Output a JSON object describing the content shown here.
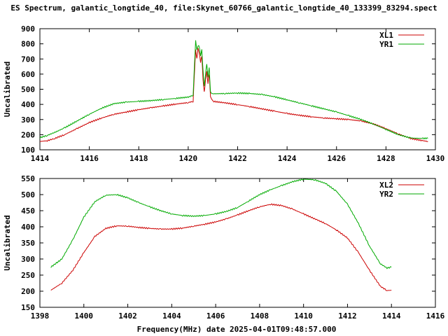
{
  "title": "ES Spectrum, galantic_longtide_40, file:Skynet_60766_galantic_longtide_40_133399_83294.spect",
  "xlabel": "Frequency(MHz) date 2025-04-01T09:48:57.000",
  "chart_data": [
    {
      "type": "line",
      "ylabel": "Uncalibrated",
      "xlim": [
        1414,
        1430
      ],
      "ylim": [
        100,
        900
      ],
      "xticks": [
        1414,
        1416,
        1418,
        1420,
        1422,
        1424,
        1426,
        1428,
        1430
      ],
      "yticks": [
        100,
        200,
        300,
        400,
        500,
        600,
        700,
        800,
        900
      ],
      "grid": false,
      "legend": "top-right",
      "series": [
        {
          "name": "XL1",
          "color": "#cc0000",
          "points": [
            [
              1414.0,
              155
            ],
            [
              1414.3,
              160
            ],
            [
              1414.6,
              175
            ],
            [
              1415.0,
              200
            ],
            [
              1415.5,
              240
            ],
            [
              1416.0,
              280
            ],
            [
              1416.5,
              310
            ],
            [
              1417.0,
              335
            ],
            [
              1417.5,
              350
            ],
            [
              1418.0,
              365
            ],
            [
              1418.5,
              378
            ],
            [
              1419.0,
              390
            ],
            [
              1419.5,
              402
            ],
            [
              1420.0,
              412
            ],
            [
              1420.2,
              420
            ],
            [
              1420.25,
              600
            ],
            [
              1420.3,
              760
            ],
            [
              1420.35,
              700
            ],
            [
              1420.4,
              770
            ],
            [
              1420.45,
              740
            ],
            [
              1420.5,
              680
            ],
            [
              1420.55,
              720
            ],
            [
              1420.6,
              560
            ],
            [
              1420.65,
              480
            ],
            [
              1420.7,
              560
            ],
            [
              1420.75,
              620
            ],
            [
              1420.8,
              540
            ],
            [
              1420.85,
              600
            ],
            [
              1420.9,
              450
            ],
            [
              1421.0,
              420
            ],
            [
              1421.5,
              410
            ],
            [
              1422.0,
              398
            ],
            [
              1422.5,
              385
            ],
            [
              1423.0,
              370
            ],
            [
              1423.5,
              355
            ],
            [
              1424.0,
              340
            ],
            [
              1424.5,
              328
            ],
            [
              1425.0,
              318
            ],
            [
              1425.5,
              310
            ],
            [
              1426.0,
              305
            ],
            [
              1426.5,
              300
            ],
            [
              1427.0,
              290
            ],
            [
              1427.5,
              270
            ],
            [
              1428.0,
              240
            ],
            [
              1428.5,
              205
            ],
            [
              1429.0,
              175
            ],
            [
              1429.5,
              160
            ],
            [
              1429.7,
              155
            ]
          ]
        },
        {
          "name": "YR1",
          "color": "#00aa00",
          "points": [
            [
              1414.0,
              180
            ],
            [
              1414.3,
              195
            ],
            [
              1414.6,
              215
            ],
            [
              1415.0,
              245
            ],
            [
              1415.5,
              290
            ],
            [
              1416.0,
              335
            ],
            [
              1416.5,
              375
            ],
            [
              1417.0,
              405
            ],
            [
              1417.5,
              415
            ],
            [
              1418.0,
              420
            ],
            [
              1418.5,
              425
            ],
            [
              1419.0,
              432
            ],
            [
              1419.5,
              440
            ],
            [
              1420.0,
              448
            ],
            [
              1420.2,
              460
            ],
            [
              1420.25,
              650
            ],
            [
              1420.3,
              820
            ],
            [
              1420.35,
              760
            ],
            [
              1420.4,
              790
            ],
            [
              1420.45,
              780
            ],
            [
              1420.5,
              720
            ],
            [
              1420.55,
              760
            ],
            [
              1420.6,
              620
            ],
            [
              1420.65,
              520
            ],
            [
              1420.7,
              600
            ],
            [
              1420.75,
              670
            ],
            [
              1420.8,
              580
            ],
            [
              1420.85,
              640
            ],
            [
              1420.9,
              480
            ],
            [
              1421.0,
              470
            ],
            [
              1421.5,
              472
            ],
            [
              1422.0,
              475
            ],
            [
              1422.5,
              472
            ],
            [
              1423.0,
              465
            ],
            [
              1423.5,
              450
            ],
            [
              1424.0,
              430
            ],
            [
              1424.5,
              410
            ],
            [
              1425.0,
              390
            ],
            [
              1425.5,
              370
            ],
            [
              1426.0,
              350
            ],
            [
              1426.5,
              325
            ],
            [
              1427.0,
              300
            ],
            [
              1427.5,
              270
            ],
            [
              1428.0,
              235
            ],
            [
              1428.5,
              200
            ],
            [
              1429.0,
              178
            ],
            [
              1429.5,
              175
            ],
            [
              1429.7,
              176
            ]
          ]
        }
      ]
    },
    {
      "type": "line",
      "ylabel": "Uncalibrated",
      "xlim": [
        1398,
        1416
      ],
      "ylim": [
        150,
        550
      ],
      "xticks": [
        1398,
        1400,
        1402,
        1404,
        1406,
        1408,
        1410,
        1412,
        1414,
        1416
      ],
      "yticks": [
        150,
        200,
        250,
        300,
        350,
        400,
        450,
        500,
        550
      ],
      "grid": false,
      "legend": "top-right",
      "series": [
        {
          "name": "XL2",
          "color": "#cc0000",
          "points": [
            [
              1398.5,
              203
            ],
            [
              1399.0,
              225
            ],
            [
              1399.5,
              265
            ],
            [
              1400.0,
              320
            ],
            [
              1400.5,
              370
            ],
            [
              1401.0,
              395
            ],
            [
              1401.5,
              403
            ],
            [
              1402.0,
              402
            ],
            [
              1402.5,
              398
            ],
            [
              1403.0,
              395
            ],
            [
              1403.5,
              393
            ],
            [
              1404.0,
              393
            ],
            [
              1404.5,
              396
            ],
            [
              1405.0,
              402
            ],
            [
              1405.5,
              408
            ],
            [
              1406.0,
              415
            ],
            [
              1406.5,
              425
            ],
            [
              1407.0,
              437
            ],
            [
              1407.5,
              450
            ],
            [
              1408.0,
              462
            ],
            [
              1408.5,
              470
            ],
            [
              1409.0,
              466
            ],
            [
              1409.5,
              455
            ],
            [
              1410.0,
              440
            ],
            [
              1410.5,
              425
            ],
            [
              1411.0,
              410
            ],
            [
              1411.5,
              390
            ],
            [
              1412.0,
              365
            ],
            [
              1412.5,
              320
            ],
            [
              1413.0,
              265
            ],
            [
              1413.5,
              215
            ],
            [
              1413.8,
              202
            ],
            [
              1414.0,
              203
            ]
          ]
        },
        {
          "name": "YR2",
          "color": "#00aa00",
          "points": [
            [
              1398.5,
              275
            ],
            [
              1399.0,
              300
            ],
            [
              1399.5,
              360
            ],
            [
              1400.0,
              430
            ],
            [
              1400.5,
              478
            ],
            [
              1401.0,
              498
            ],
            [
              1401.5,
              500
            ],
            [
              1402.0,
              490
            ],
            [
              1402.5,
              475
            ],
            [
              1403.0,
              462
            ],
            [
              1403.5,
              450
            ],
            [
              1404.0,
              440
            ],
            [
              1404.5,
              435
            ],
            [
              1405.0,
              433
            ],
            [
              1405.5,
              435
            ],
            [
              1406.0,
              440
            ],
            [
              1406.5,
              448
            ],
            [
              1407.0,
              460
            ],
            [
              1407.5,
              480
            ],
            [
              1408.0,
              500
            ],
            [
              1408.5,
              515
            ],
            [
              1409.0,
              528
            ],
            [
              1409.5,
              540
            ],
            [
              1410.0,
              548
            ],
            [
              1410.5,
              546
            ],
            [
              1411.0,
              535
            ],
            [
              1411.5,
              510
            ],
            [
              1412.0,
              470
            ],
            [
              1412.5,
              410
            ],
            [
              1413.0,
              340
            ],
            [
              1413.5,
              285
            ],
            [
              1413.8,
              272
            ],
            [
              1414.0,
              275
            ]
          ]
        }
      ]
    }
  ]
}
